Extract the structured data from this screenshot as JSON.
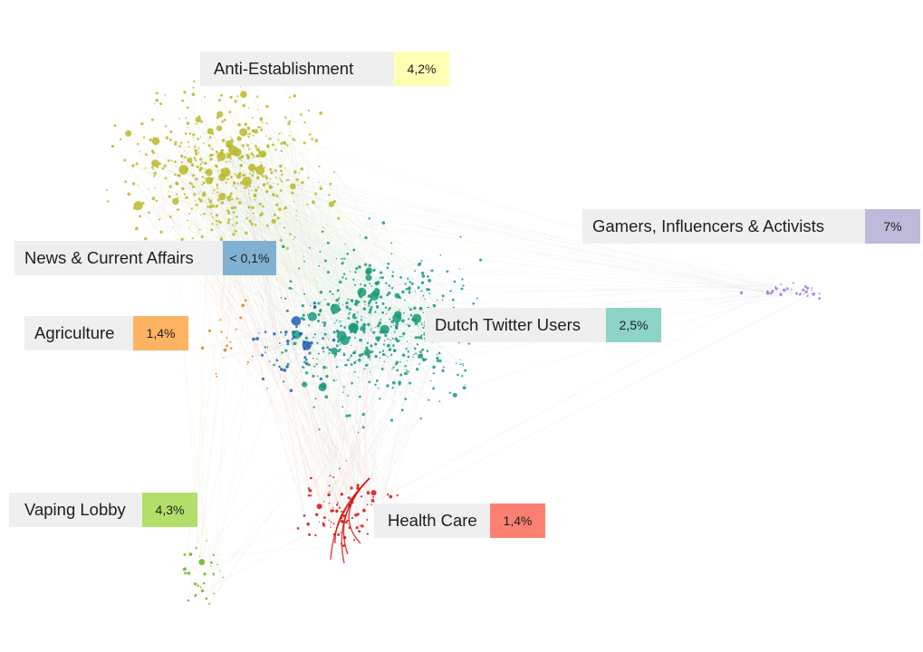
{
  "clusters": [
    {
      "name": "Anti-Establishment",
      "percent": "4,2%",
      "color": "#ffffb3",
      "node_color": "#b8b829"
    },
    {
      "name": "Gamers, Influencers & Activists",
      "percent": "7%",
      "color": "#bebada",
      "node_color": "#8a7fe0"
    },
    {
      "name": "News & Current Affairs",
      "percent": "< 0,1%",
      "color": "#80b1d3",
      "node_color": "#1f5fb0"
    },
    {
      "name": "Agriculture",
      "percent": "1,4%",
      "color": "#fdb462",
      "node_color": "#e8801a"
    },
    {
      "name": "Dutch Twitter Users",
      "percent": "2,5%",
      "color": "#8dd3c7",
      "node_color": "#1a9a7a"
    },
    {
      "name": "Vaping Lobby",
      "percent": "4,3%",
      "color": "#b3de69",
      "node_color": "#6ab020"
    },
    {
      "name": "Health Care",
      "percent": "1,4%",
      "color": "#fb8072",
      "node_color": "#d40f0f"
    }
  ]
}
